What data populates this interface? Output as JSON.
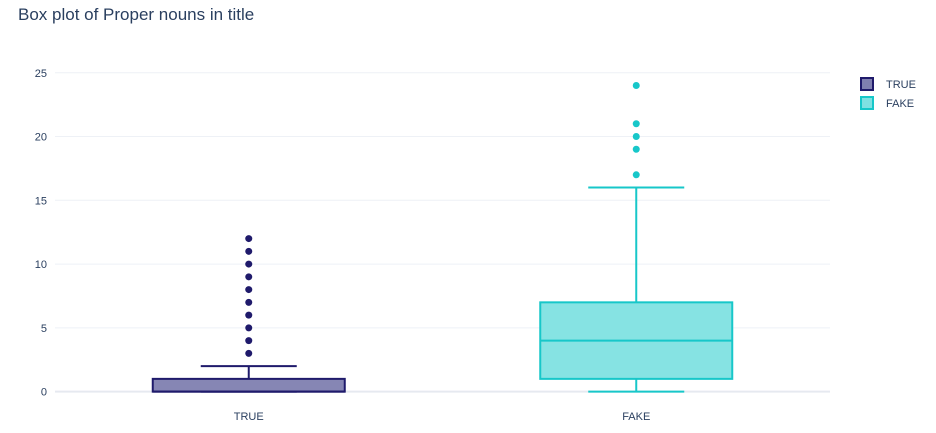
{
  "chart_data": {
    "type": "box",
    "title": "Box plot of Proper nouns in title",
    "xlabel": "",
    "ylabel": "",
    "ylim": [
      -0.5,
      26
    ],
    "yticks": [
      0,
      5,
      10,
      15,
      20,
      25
    ],
    "ytick_labels": [
      "0",
      "5",
      "10",
      "15",
      "20",
      "25"
    ],
    "grid": true,
    "legend_position": "top-right",
    "categories": [
      "TRUE",
      "FAKE"
    ],
    "series": [
      {
        "name": "TRUE",
        "category": "TRUE",
        "stroke_color": "#1f1a6b",
        "fill_color": "#7f7fb0",
        "lower_whisker": 0,
        "q1": 0,
        "median": 0,
        "q3": 1,
        "upper_whisker": 2,
        "outliers": [
          3,
          4,
          5,
          6,
          7,
          8,
          9,
          10,
          11,
          12
        ]
      },
      {
        "name": "FAKE",
        "category": "FAKE",
        "stroke_color": "#17c7c9",
        "fill_color": "#7fe1e2",
        "lower_whisker": 0,
        "q1": 1,
        "median": 4,
        "q3": 7,
        "upper_whisker": 16,
        "outliers": [
          17,
          19,
          20,
          21,
          24
        ]
      }
    ]
  }
}
